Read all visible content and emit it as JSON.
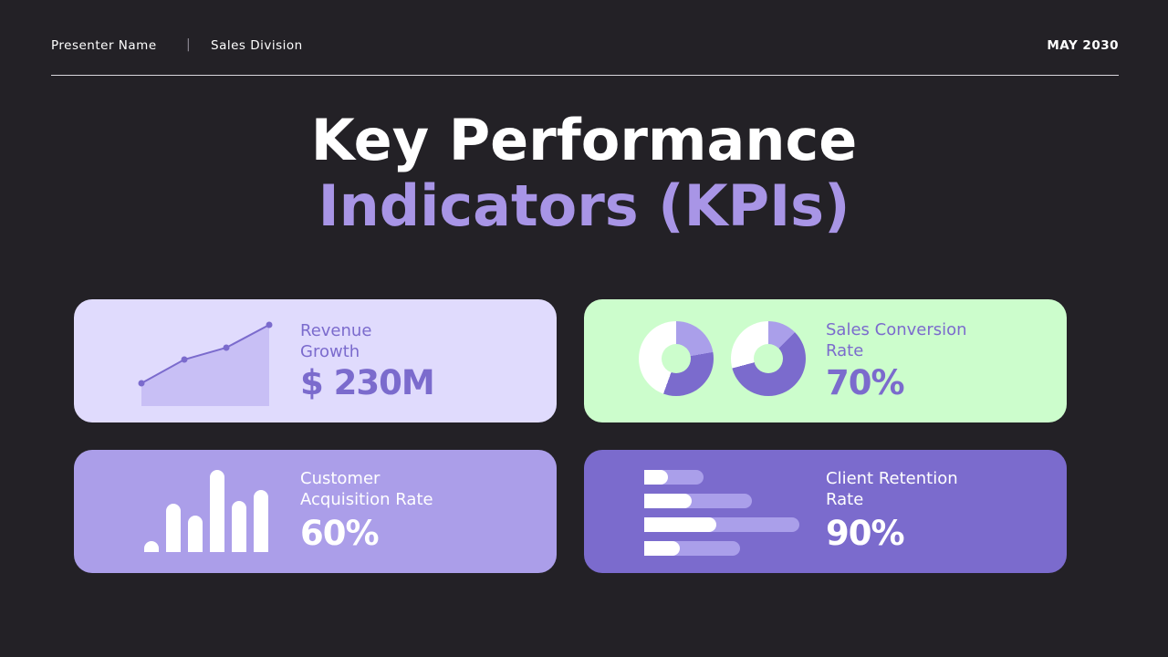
{
  "header": {
    "presenter": "Presenter Name",
    "separator": "|",
    "division": "Sales Division",
    "date": "MAY 2030"
  },
  "title": {
    "line1": "Key Performance",
    "line2": "Indicators (KPIs)"
  },
  "colors": {
    "background": "#232126",
    "accent": "#a895e6",
    "card_revenue": "#e0dbfd",
    "card_conversion": "#ccfdcc",
    "card_acquisition": "#ab9ee9",
    "card_retention": "#7b6bcd"
  },
  "kpis": [
    {
      "label_line1": "Revenue",
      "label_line2": "Growth",
      "value": "$ 230M",
      "icon": "line-area-chart-icon"
    },
    {
      "label_line1": "Sales Conversion",
      "label_line2": "Rate",
      "value": "70%",
      "icon": "donut-charts-icon"
    },
    {
      "label_line1": "Customer",
      "label_line2": "Acquisition Rate",
      "value": "60%",
      "icon": "bar-chart-icon"
    },
    {
      "label_line1": "Client Retention",
      "label_line2": "Rate",
      "value": "90%",
      "icon": "horizontal-bars-icon"
    }
  ]
}
